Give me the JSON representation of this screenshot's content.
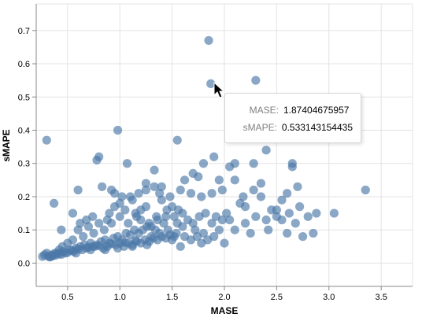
{
  "chart_data": {
    "type": "scatter",
    "xlabel": "MASE",
    "ylabel": "sMAPE",
    "xlim": [
      0.2,
      3.8
    ],
    "ylim": [
      -0.07,
      0.78
    ],
    "x_ticks": [
      "0.5",
      "1.0",
      "1.5",
      "2.0",
      "2.5",
      "3.0",
      "3.5"
    ],
    "y_ticks": [
      "0.0",
      "0.1",
      "0.2",
      "0.3",
      "0.4",
      "0.5",
      "0.6",
      "0.7"
    ],
    "grid": true,
    "point_color": "#4c78a8",
    "points": [
      [
        0.3,
        0.37
      ],
      [
        0.37,
        0.18
      ],
      [
        0.44,
        0.1
      ],
      [
        0.55,
        0.15
      ],
      [
        0.6,
        0.22
      ],
      [
        0.78,
        0.31
      ],
      [
        0.8,
        0.32
      ],
      [
        0.83,
        0.23
      ],
      [
        0.95,
        0.21
      ],
      [
        0.98,
        0.4
      ],
      [
        1.07,
        0.3
      ],
      [
        1.1,
        0.2
      ],
      [
        1.25,
        0.22
      ],
      [
        1.25,
        0.24
      ],
      [
        1.33,
        0.23
      ],
      [
        1.33,
        0.28
      ],
      [
        1.4,
        0.23
      ],
      [
        1.55,
        0.37
      ],
      [
        1.62,
        0.25
      ],
      [
        1.7,
        0.27
      ],
      [
        1.75,
        0.26
      ],
      [
        1.8,
        0.3
      ],
      [
        1.85,
        0.67
      ],
      [
        1.87,
        0.54
      ],
      [
        1.9,
        0.32
      ],
      [
        1.95,
        0.25
      ],
      [
        2.05,
        0.29
      ],
      [
        2.1,
        0.25
      ],
      [
        2.1,
        0.3
      ],
      [
        2.28,
        0.22
      ],
      [
        2.28,
        0.3
      ],
      [
        2.3,
        0.55
      ],
      [
        2.35,
        0.24
      ],
      [
        2.4,
        0.34
      ],
      [
        2.45,
        0.38
      ],
      [
        2.5,
        0.16
      ],
      [
        2.55,
        0.19
      ],
      [
        2.6,
        0.21
      ],
      [
        2.65,
        0.29
      ],
      [
        2.65,
        0.3
      ],
      [
        2.7,
        0.23
      ],
      [
        2.72,
        0.17
      ],
      [
        2.8,
        0.14
      ],
      [
        2.88,
        0.15
      ],
      [
        3.05,
        0.15
      ],
      [
        3.35,
        0.22
      ],
      [
        2.75,
        0.08
      ],
      [
        2.85,
        0.09
      ],
      [
        2.5,
        0.14
      ],
      [
        2.4,
        0.13
      ],
      [
        2.3,
        0.14
      ],
      [
        2.2,
        0.12
      ],
      [
        2.05,
        0.13
      ],
      [
        2.1,
        0.1
      ],
      [
        2.25,
        0.09
      ],
      [
        2.0,
        0.06
      ],
      [
        1.95,
        0.1
      ],
      [
        1.88,
        0.12
      ],
      [
        1.8,
        0.09
      ],
      [
        1.72,
        0.1
      ],
      [
        1.65,
        0.13
      ],
      [
        1.6,
        0.15
      ],
      [
        1.55,
        0.12
      ],
      [
        1.5,
        0.17
      ],
      [
        1.45,
        0.16
      ],
      [
        1.4,
        0.19
      ],
      [
        1.35,
        0.14
      ],
      [
        1.3,
        0.11
      ],
      [
        1.25,
        0.17
      ],
      [
        1.2,
        0.13
      ],
      [
        1.15,
        0.15
      ],
      [
        1.12,
        0.19
      ],
      [
        1.05,
        0.16
      ],
      [
        1.0,
        0.14
      ],
      [
        0.95,
        0.17
      ],
      [
        0.92,
        0.12
      ],
      [
        0.88,
        0.13
      ],
      [
        0.85,
        0.1
      ],
      [
        0.8,
        0.12
      ],
      [
        0.75,
        0.09
      ],
      [
        0.7,
        0.11
      ],
      [
        0.65,
        0.08
      ],
      [
        0.6,
        0.1
      ],
      [
        0.55,
        0.07
      ],
      [
        0.5,
        0.06
      ],
      [
        0.45,
        0.05
      ],
      [
        0.42,
        0.04
      ],
      [
        0.38,
        0.03
      ],
      [
        0.35,
        0.025
      ],
      [
        0.32,
        0.02
      ],
      [
        0.28,
        0.025
      ],
      [
        0.3,
        0.03
      ],
      [
        0.34,
        0.02
      ],
      [
        0.4,
        0.03
      ],
      [
        0.46,
        0.035
      ],
      [
        0.52,
        0.04
      ],
      [
        0.58,
        0.045
      ],
      [
        0.62,
        0.05
      ],
      [
        0.66,
        0.055
      ],
      [
        0.72,
        0.06
      ],
      [
        0.76,
        0.05
      ],
      [
        0.82,
        0.065
      ],
      [
        0.86,
        0.07
      ],
      [
        0.9,
        0.06
      ],
      [
        0.94,
        0.075
      ],
      [
        0.98,
        0.08
      ],
      [
        1.02,
        0.07
      ],
      [
        1.06,
        0.09
      ],
      [
        1.1,
        0.085
      ],
      [
        1.14,
        0.1
      ],
      [
        1.18,
        0.09
      ],
      [
        1.22,
        0.1
      ],
      [
        1.26,
        0.11
      ],
      [
        1.3,
        0.08
      ],
      [
        1.34,
        0.1
      ],
      [
        1.38,
        0.09
      ],
      [
        1.42,
        0.12
      ],
      [
        1.46,
        0.1
      ],
      [
        1.5,
        0.07
      ],
      [
        1.54,
        0.09
      ],
      [
        1.58,
        0.05
      ],
      [
        1.62,
        0.08
      ],
      [
        1.68,
        0.07
      ],
      [
        1.74,
        0.08
      ],
      [
        1.78,
        0.06
      ],
      [
        1.84,
        0.07
      ],
      [
        1.9,
        0.08
      ],
      [
        0.48,
        0.03
      ],
      [
        0.56,
        0.035
      ],
      [
        0.64,
        0.04
      ],
      [
        0.68,
        0.045
      ],
      [
        0.74,
        0.05
      ],
      [
        0.78,
        0.055
      ],
      [
        0.84,
        0.045
      ],
      [
        0.88,
        0.05
      ],
      [
        0.96,
        0.055
      ],
      [
        1.0,
        0.06
      ],
      [
        1.04,
        0.05
      ],
      [
        1.08,
        0.06
      ],
      [
        1.12,
        0.055
      ],
      [
        1.16,
        0.065
      ],
      [
        1.2,
        0.06
      ],
      [
        1.24,
        0.07
      ],
      [
        1.28,
        0.065
      ],
      [
        1.32,
        0.075
      ],
      [
        1.36,
        0.07
      ],
      [
        1.4,
        0.08
      ],
      [
        1.44,
        0.075
      ],
      [
        1.48,
        0.085
      ],
      [
        1.52,
        0.08
      ],
      [
        0.36,
        0.022
      ],
      [
        0.42,
        0.028
      ],
      [
        0.5,
        0.032
      ],
      [
        0.54,
        0.038
      ],
      [
        0.6,
        0.042
      ],
      [
        0.7,
        0.048
      ],
      [
        0.8,
        0.052
      ],
      [
        0.92,
        0.058
      ],
      [
        1.05,
        0.062
      ],
      [
        1.15,
        0.068
      ],
      [
        0.26,
        0.02
      ],
      [
        0.33,
        0.018
      ],
      [
        0.39,
        0.024
      ],
      [
        0.44,
        0.026
      ],
      [
        0.58,
        0.03
      ],
      [
        0.72,
        0.04
      ],
      [
        0.86,
        0.04
      ],
      [
        0.98,
        0.045
      ],
      [
        1.12,
        0.05
      ],
      [
        1.26,
        0.055
      ],
      [
        0.62,
        0.12
      ],
      [
        0.68,
        0.13
      ],
      [
        0.74,
        0.14
      ],
      [
        0.9,
        0.15
      ],
      [
        1.0,
        0.18
      ],
      [
        1.08,
        0.12
      ],
      [
        1.16,
        0.14
      ],
      [
        1.2,
        0.16
      ],
      [
        1.28,
        0.12
      ],
      [
        1.36,
        0.13
      ],
      [
        1.44,
        0.14
      ],
      [
        1.52,
        0.14
      ],
      [
        1.56,
        0.16
      ],
      [
        1.6,
        0.11
      ],
      [
        1.7,
        0.12
      ],
      [
        1.76,
        0.14
      ],
      [
        1.82,
        0.15
      ],
      [
        1.92,
        0.14
      ],
      [
        1.98,
        0.13
      ],
      [
        2.02,
        0.15
      ],
      [
        2.15,
        0.18
      ],
      [
        2.2,
        0.17
      ],
      [
        2.35,
        0.2
      ],
      [
        2.45,
        0.16
      ],
      [
        2.55,
        0.13
      ],
      [
        2.62,
        0.15
      ],
      [
        2.68,
        0.12
      ],
      [
        2.6,
        0.09
      ],
      [
        2.42,
        0.1
      ],
      [
        2.18,
        0.2
      ],
      [
        1.98,
        0.22
      ],
      [
        1.88,
        0.21
      ],
      [
        1.78,
        0.2
      ],
      [
        1.68,
        0.21
      ],
      [
        1.58,
        0.22
      ],
      [
        1.48,
        0.2
      ],
      [
        1.38,
        0.21
      ],
      [
        1.18,
        0.21
      ],
      [
        1.02,
        0.2
      ],
      [
        0.92,
        0.22
      ]
    ]
  },
  "tooltip": {
    "rows": [
      {
        "key": "MASE:",
        "value": "1.87404675957"
      },
      {
        "key": "sMAPE:",
        "value": "0.533143154435"
      }
    ]
  }
}
